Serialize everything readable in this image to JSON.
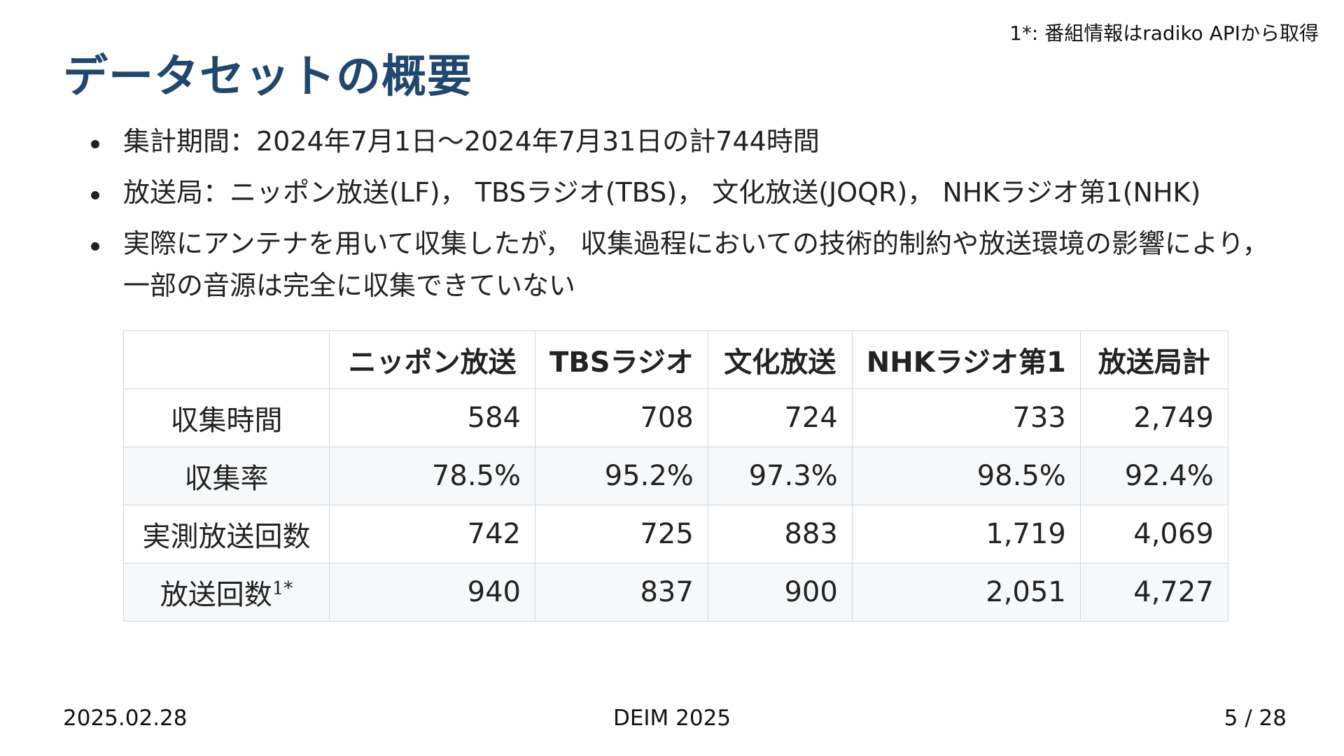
{
  "footnote": "1*: 番組情報はradiko APIから取得",
  "title": "データセットの概要",
  "bullets": [
    "集計期間：2024年7月1日〜2024年7月31日の計744時間",
    "放送局：ニッポン放送(LF)， TBSラジオ(TBS)， 文化放送(JOQR)， NHKラジオ第1(NHK)",
    "実際にアンテナを用いて収集したが， 収集過程においての技術的制約や放送環境の影響により， 一部の音源は完全に収集できていない"
  ],
  "table": {
    "headers": [
      "",
      "ニッポン放送",
      "TBSラジオ",
      "文化放送",
      "NHKラジオ第1",
      "放送局計"
    ],
    "rows": [
      {
        "label": "収集時間",
        "cells": [
          "584",
          "708",
          "724",
          "733",
          "2,749"
        ]
      },
      {
        "label": "収集率",
        "cells": [
          "78.5%",
          "95.2%",
          "97.3%",
          "98.5%",
          "92.4%"
        ]
      },
      {
        "label": "実測放送回数",
        "cells": [
          "742",
          "725",
          "883",
          "1,719",
          "4,069"
        ]
      },
      {
        "label": "放送回数",
        "label_sup": "1*",
        "cells": [
          "940",
          "837",
          "900",
          "2,051",
          "4,727"
        ]
      }
    ]
  },
  "footer": {
    "date": "2025.02.28",
    "venue": "DEIM 2025",
    "page": "5 / 28"
  }
}
